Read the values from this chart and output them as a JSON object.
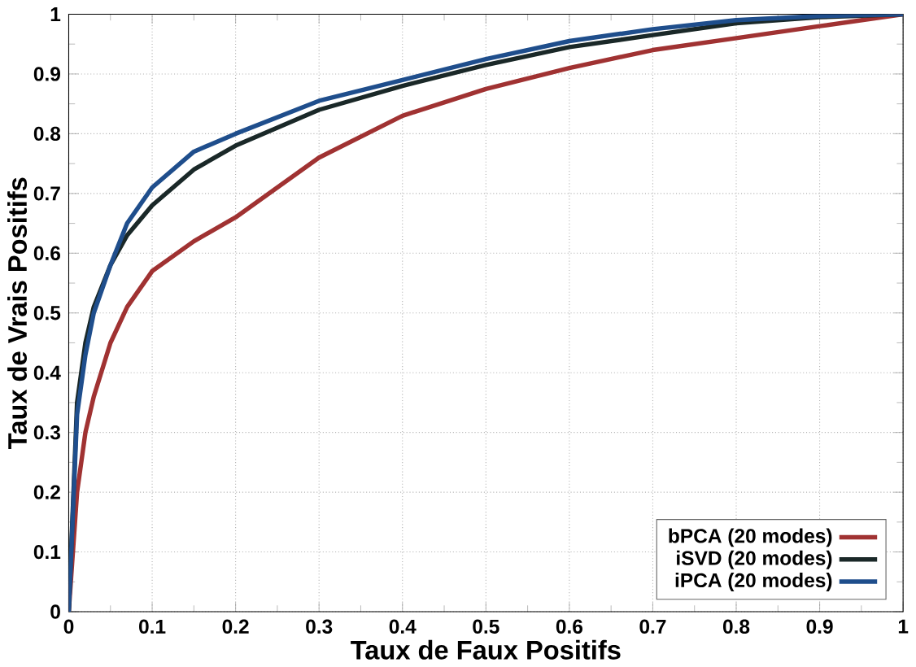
{
  "chart_data": {
    "type": "line",
    "xlabel": "Taux de Faux Positifs",
    "ylabel": "Taux de Vrais Positifs",
    "xlim": [
      0,
      1
    ],
    "ylim": [
      0,
      1
    ],
    "xticks": [
      0,
      0.1,
      0.2,
      0.3,
      0.4,
      0.5,
      0.6,
      0.7,
      0.8,
      0.9,
      1
    ],
    "yticks": [
      0,
      0.1,
      0.2,
      0.3,
      0.4,
      0.5,
      0.6,
      0.7,
      0.8,
      0.9,
      1
    ],
    "grid": true,
    "legend": "bottom right",
    "marker": "none",
    "line_style": "solid",
    "x": [
      0,
      0.01,
      0.02,
      0.03,
      0.05,
      0.07,
      0.1,
      0.15,
      0.2,
      0.3,
      0.4,
      0.5,
      0.6,
      0.7,
      0.8,
      0.9,
      1
    ],
    "series": [
      {
        "name": "bPCA (20 modes)",
        "color": "#a03232",
        "values": [
          0,
          0.2,
          0.3,
          0.36,
          0.45,
          0.51,
          0.57,
          0.62,
          0.66,
          0.76,
          0.83,
          0.875,
          0.91,
          0.94,
          0.96,
          0.98,
          1
        ]
      },
      {
        "name": "iSVD (20 modes)",
        "color": "#1a2828",
        "values": [
          0,
          0.35,
          0.45,
          0.51,
          0.58,
          0.63,
          0.68,
          0.74,
          0.78,
          0.84,
          0.88,
          0.915,
          0.945,
          0.965,
          0.985,
          0.995,
          1
        ]
      },
      {
        "name": "iPCA (20 modes)",
        "color": "#1f4e8c",
        "values": [
          0,
          0.33,
          0.43,
          0.5,
          0.58,
          0.65,
          0.71,
          0.77,
          0.8,
          0.855,
          0.89,
          0.925,
          0.955,
          0.975,
          0.99,
          0.997,
          1
        ]
      }
    ]
  }
}
